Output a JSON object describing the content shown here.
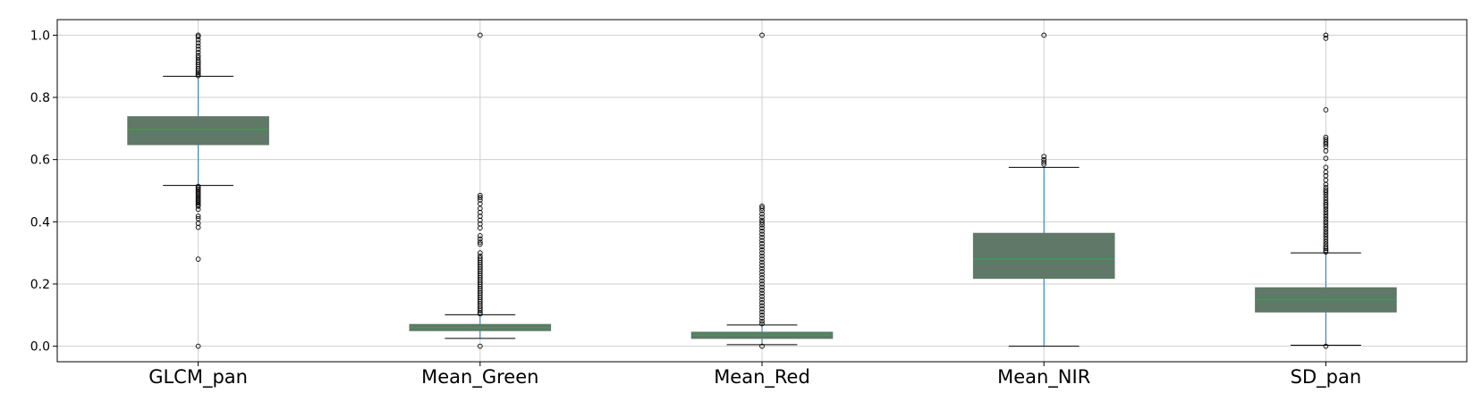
{
  "chart_data": {
    "type": "box",
    "categories": [
      "GLCM_pan",
      "Mean_Green",
      "Mean_Red",
      "Mean_NIR",
      "SD_pan"
    ],
    "y_ticks": [
      "0.0",
      "0.2",
      "0.4",
      "0.6",
      "0.8",
      "1.0"
    ],
    "ylim": [
      -0.05,
      1.05
    ],
    "grid": true,
    "boxes": [
      {
        "name": "GLCM_pan",
        "whisker_low": 0.517,
        "q1": 0.648,
        "median": 0.697,
        "q3": 0.738,
        "whisker_high": 0.868,
        "outliers": [
          1.0,
          0.995,
          0.985,
          0.975,
          0.965,
          0.955,
          0.945,
          0.935,
          0.928,
          0.92,
          0.913,
          0.906,
          0.899,
          0.892,
          0.886,
          0.88,
          0.875,
          0.87,
          0.514,
          0.51,
          0.505,
          0.5,
          0.495,
          0.49,
          0.485,
          0.48,
          0.475,
          0.47,
          0.465,
          0.46,
          0.455,
          0.45,
          0.44,
          0.418,
          0.41,
          0.395,
          0.382,
          0.28,
          0.0
        ]
      },
      {
        "name": "Mean_Green",
        "whisker_low": 0.025,
        "q1": 0.05,
        "median": 0.06,
        "q3": 0.07,
        "whisker_high": 0.101,
        "outliers": [
          1.0,
          0.485,
          0.478,
          0.47,
          0.458,
          0.443,
          0.43,
          0.418,
          0.405,
          0.393,
          0.38,
          0.355,
          0.345,
          0.335,
          0.328,
          0.3,
          0.29,
          0.283,
          0.276,
          0.269,
          0.262,
          0.255,
          0.248,
          0.241,
          0.234,
          0.227,
          0.22,
          0.213,
          0.206,
          0.199,
          0.192,
          0.185,
          0.178,
          0.171,
          0.164,
          0.157,
          0.15,
          0.143,
          0.136,
          0.129,
          0.122,
          0.115,
          0.108,
          0.104,
          0.0
        ]
      },
      {
        "name": "Mean_Red",
        "whisker_low": 0.005,
        "q1": 0.025,
        "median": 0.035,
        "q3": 0.045,
        "whisker_high": 0.068,
        "outliers": [
          1.0,
          0.45,
          0.444,
          0.436,
          0.425,
          0.415,
          0.405,
          0.398,
          0.39,
          0.38,
          0.37,
          0.36,
          0.35,
          0.34,
          0.33,
          0.32,
          0.31,
          0.3,
          0.29,
          0.28,
          0.27,
          0.26,
          0.25,
          0.24,
          0.23,
          0.22,
          0.21,
          0.2,
          0.19,
          0.18,
          0.17,
          0.16,
          0.15,
          0.14,
          0.13,
          0.12,
          0.11,
          0.1,
          0.09,
          0.08,
          0.072,
          0.0
        ]
      },
      {
        "name": "Mean_NIR",
        "whisker_low": 0.0,
        "q1": 0.218,
        "median": 0.28,
        "q3": 0.363,
        "whisker_high": 0.575,
        "outliers": [
          1.0,
          0.61,
          0.6,
          0.592,
          0.585
        ]
      },
      {
        "name": "SD_pan",
        "whisker_low": 0.003,
        "q1": 0.11,
        "median": 0.15,
        "q3": 0.188,
        "whisker_high": 0.3,
        "outliers": [
          1.0,
          0.99,
          0.76,
          0.672,
          0.665,
          0.657,
          0.65,
          0.642,
          0.628,
          0.604,
          0.575,
          0.56,
          0.548,
          0.534,
          0.52,
          0.51,
          0.502,
          0.495,
          0.487,
          0.478,
          0.47,
          0.462,
          0.455,
          0.448,
          0.44,
          0.432,
          0.424,
          0.416,
          0.408,
          0.4,
          0.392,
          0.384,
          0.376,
          0.368,
          0.36,
          0.352,
          0.344,
          0.336,
          0.328,
          0.32,
          0.314,
          0.308,
          0.303,
          0.0
        ]
      }
    ],
    "colors": {
      "box_fill": "#5f7867",
      "median": "#3a9b57",
      "whisker": "#1f77b4",
      "cap": "#000000",
      "grid": "#cfcfcf",
      "outlier": "#000000"
    }
  }
}
